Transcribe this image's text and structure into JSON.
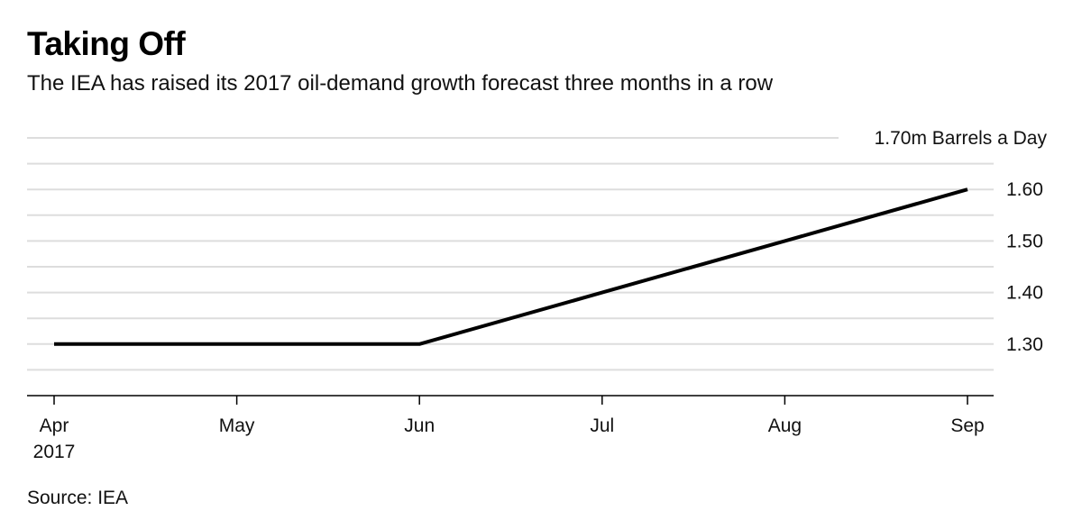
{
  "header": {
    "title": "Taking Off",
    "subtitle": "The IEA has raised its 2017 oil-demand growth forecast three months in a row"
  },
  "footer": {
    "source": "Source: IEA"
  },
  "chart_data": {
    "type": "line",
    "title": "Taking Off",
    "subtitle": "The IEA has raised its 2017 oil-demand growth forecast three months in a row",
    "categories": [
      "Apr",
      "May",
      "Jun",
      "Jul",
      "Aug",
      "Sep"
    ],
    "x_tick_labels": [
      {
        "label": "Apr",
        "sublabel": "2017"
      },
      {
        "label": "May",
        "sublabel": ""
      },
      {
        "label": "Jun",
        "sublabel": ""
      },
      {
        "label": "Jul",
        "sublabel": ""
      },
      {
        "label": "Aug",
        "sublabel": ""
      },
      {
        "label": "Sep",
        "sublabel": ""
      }
    ],
    "series": [
      {
        "values": [
          1.3,
          1.3,
          1.3,
          1.4,
          1.5,
          1.6
        ],
        "color": "#000000"
      }
    ],
    "y_ticks": [
      {
        "value": 1.7,
        "label": "1.70m Barrels a Day"
      },
      {
        "value": 1.6,
        "label": "1.60"
      },
      {
        "value": 1.5,
        "label": "1.50"
      },
      {
        "value": 1.4,
        "label": "1.40"
      },
      {
        "value": 1.3,
        "label": "1.30"
      }
    ],
    "ylim": [
      1.2,
      1.7
    ],
    "y_axis_side": "right",
    "grid": true,
    "minor_grid_step": 0.05,
    "grid_color": "#dddddd",
    "source": "Source: IEA"
  }
}
